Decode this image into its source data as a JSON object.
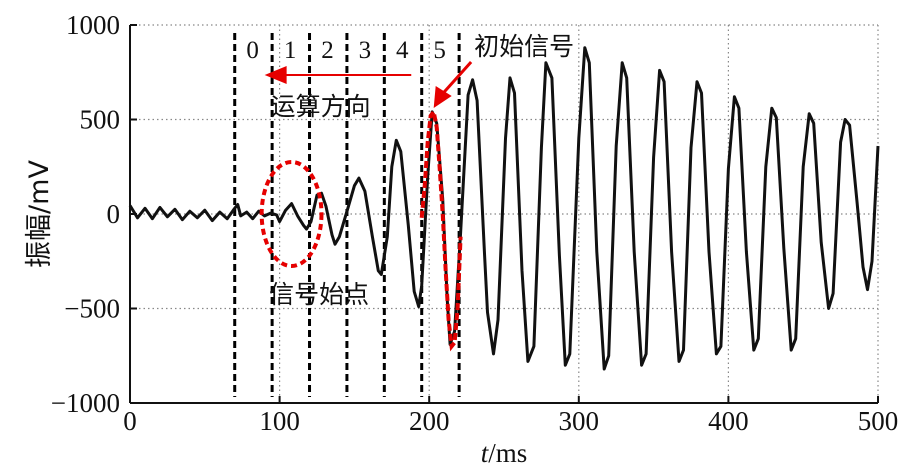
{
  "chart_data": {
    "type": "line",
    "xlabel_italic": "t",
    "xlabel_rest": "/ms",
    "ylabel": "振幅/mV",
    "xlim": [
      0,
      500
    ],
    "ylim": [
      -1000,
      1000
    ],
    "xticks": [
      "0",
      "100",
      "200",
      "300",
      "400",
      "500"
    ],
    "yticks": [
      "1000",
      "500",
      "0",
      "−500",
      "−1000"
    ],
    "xtick_values": [
      0,
      100,
      200,
      300,
      400,
      500
    ],
    "ytick_values": [
      1000,
      500,
      0,
      -500,
      -1000
    ],
    "grid": "dotted",
    "signal": {
      "color": "#111111",
      "points": [
        [
          0,
          45
        ],
        [
          5,
          -20
        ],
        [
          10,
          30
        ],
        [
          15,
          -25
        ],
        [
          20,
          35
        ],
        [
          25,
          -15
        ],
        [
          30,
          25
        ],
        [
          35,
          -30
        ],
        [
          40,
          15
        ],
        [
          45,
          -20
        ],
        [
          50,
          20
        ],
        [
          55,
          -35
        ],
        [
          60,
          10
        ],
        [
          65,
          -25
        ],
        [
          70,
          30
        ],
        [
          72,
          50
        ],
        [
          74,
          -10
        ],
        [
          78,
          10
        ],
        [
          82,
          -25
        ],
        [
          86,
          15
        ],
        [
          90,
          -10
        ],
        [
          94,
          5
        ],
        [
          98,
          -5
        ],
        [
          100,
          -40
        ],
        [
          104,
          20
        ],
        [
          108,
          55
        ],
        [
          112,
          -10
        ],
        [
          116,
          -60
        ],
        [
          118,
          -80
        ],
        [
          121,
          -40
        ],
        [
          125,
          100
        ],
        [
          128,
          110
        ],
        [
          131,
          40
        ],
        [
          135,
          -110
        ],
        [
          137,
          -160
        ],
        [
          140,
          -120
        ],
        [
          146,
          40
        ],
        [
          150,
          150
        ],
        [
          153,
          190
        ],
        [
          157,
          120
        ],
        [
          162,
          -120
        ],
        [
          166,
          -300
        ],
        [
          168,
          -320
        ],
        [
          172,
          -120
        ],
        [
          175,
          250
        ],
        [
          178,
          390
        ],
        [
          181,
          330
        ],
        [
          186,
          -60
        ],
        [
          190,
          -410
        ],
        [
          193,
          -490
        ],
        [
          195,
          -380
        ],
        [
          199,
          200
        ],
        [
          202,
          540
        ],
        [
          205,
          480
        ],
        [
          209,
          80
        ],
        [
          212,
          -450
        ],
        [
          214,
          -690
        ],
        [
          217,
          -620
        ],
        [
          221,
          -100
        ],
        [
          226,
          630
        ],
        [
          229,
          710
        ],
        [
          232,
          600
        ],
        [
          237,
          -220
        ],
        [
          239,
          -520
        ],
        [
          243,
          -740
        ],
        [
          246,
          -560
        ],
        [
          251,
          400
        ],
        [
          254,
          720
        ],
        [
          257,
          640
        ],
        [
          262,
          -300
        ],
        [
          266,
          -780
        ],
        [
          270,
          -700
        ],
        [
          275,
          350
        ],
        [
          278,
          800
        ],
        [
          282,
          720
        ],
        [
          287,
          -220
        ],
        [
          291,
          -800
        ],
        [
          294,
          -740
        ],
        [
          300,
          400
        ],
        [
          304,
          880
        ],
        [
          307,
          800
        ],
        [
          312,
          -200
        ],
        [
          317,
          -820
        ],
        [
          320,
          -750
        ],
        [
          325,
          360
        ],
        [
          329,
          800
        ],
        [
          332,
          720
        ],
        [
          337,
          -200
        ],
        [
          342,
          -800
        ],
        [
          345,
          -740
        ],
        [
          350,
          300
        ],
        [
          354,
          760
        ],
        [
          357,
          700
        ],
        [
          362,
          -200
        ],
        [
          367,
          -780
        ],
        [
          370,
          -720
        ],
        [
          375,
          350
        ],
        [
          379,
          700
        ],
        [
          382,
          640
        ],
        [
          387,
          -200
        ],
        [
          392,
          -740
        ],
        [
          395,
          -700
        ],
        [
          400,
          240
        ],
        [
          404,
          620
        ],
        [
          407,
          560
        ],
        [
          412,
          -200
        ],
        [
          417,
          -720
        ],
        [
          420,
          -660
        ],
        [
          425,
          250
        ],
        [
          429,
          560
        ],
        [
          432,
          510
        ],
        [
          437,
          -180
        ],
        [
          442,
          -720
        ],
        [
          445,
          -660
        ],
        [
          450,
          250
        ],
        [
          454,
          530
        ],
        [
          457,
          480
        ],
        [
          462,
          -150
        ],
        [
          467,
          -500
        ],
        [
          470,
          -420
        ],
        [
          475,
          380
        ],
        [
          478,
          500
        ],
        [
          481,
          470
        ],
        [
          486,
          60
        ],
        [
          490,
          -280
        ],
        [
          493,
          -400
        ],
        [
          496,
          -250
        ],
        [
          500,
          360
        ]
      ]
    },
    "red_wave": {
      "color": "#e00000",
      "points": [
        [
          195,
          -20
        ],
        [
          197,
          150
        ],
        [
          199,
          380
        ],
        [
          201,
          520
        ],
        [
          203,
          540
        ],
        [
          205,
          460
        ],
        [
          207,
          240
        ],
        [
          209,
          0
        ],
        [
          211,
          -300
        ],
        [
          213,
          -560
        ],
        [
          215,
          -700
        ],
        [
          217,
          -680
        ],
        [
          219,
          -500
        ],
        [
          221,
          -120
        ]
      ]
    },
    "segment_lines_x": [
      70,
      95,
      120,
      145,
      170,
      195,
      220
    ],
    "segment_labels": [
      {
        "text": "0",
        "x": 82
      },
      {
        "text": "1",
        "x": 107
      },
      {
        "text": "2",
        "x": 132
      },
      {
        "text": "3",
        "x": 157
      },
      {
        "text": "4",
        "x": 182
      },
      {
        "text": "5",
        "x": 207
      }
    ],
    "annotations": {
      "initial_signal": "初始信号",
      "operation_direction": "运算方向",
      "signal_start": "信号始点"
    },
    "colors": {
      "annotation_red": "#e60000",
      "grid": "#888888",
      "axis": "#111111"
    }
  }
}
